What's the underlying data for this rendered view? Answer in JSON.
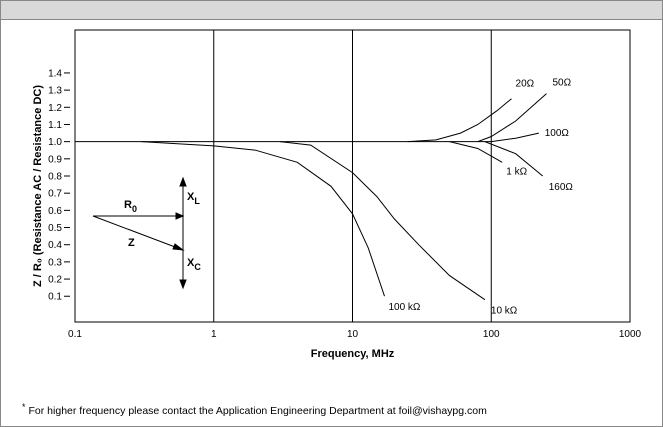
{
  "chart_data": {
    "type": "line",
    "xlabel": "Frequency, MHz",
    "ylabel": "Z / R₀ (Resistance AC / Resistance DC)",
    "xscale": "log",
    "xlim": [
      0.1,
      1000
    ],
    "xticks": [
      0.1,
      1,
      10,
      100,
      1000
    ],
    "ylim": [
      -0.05,
      1.65
    ],
    "yticks": [
      0.1,
      0.2,
      0.3,
      0.4,
      0.5,
      0.6,
      0.7,
      0.8,
      0.9,
      {
        "value": 1,
        "label": "1.0"
      },
      1.1,
      1.2,
      1.3,
      1.4
    ],
    "grid": "x",
    "color": "#000000",
    "series": [
      {
        "x": [
          0.1,
          100
        ],
        "values": [
          1,
          1
        ]
      },
      {
        "name": "20Ω",
        "x": [
          25,
          40,
          60,
          80,
          110,
          140
        ],
        "values": [
          1,
          1.01,
          1.05,
          1.1,
          1.18,
          1.25
        ]
      },
      {
        "name": "50Ω",
        "x": [
          80,
          100,
          150,
          250
        ],
        "values": [
          1,
          1.03,
          1.12,
          1.28
        ]
      },
      {
        "name": "100Ω",
        "x": [
          100,
          150,
          220
        ],
        "values": [
          1,
          1.02,
          1.05
        ]
      },
      {
        "name": "1 kΩ",
        "x": [
          50,
          80,
          120
        ],
        "values": [
          1,
          0.96,
          0.88
        ]
      },
      {
        "name": "160Ω",
        "x": [
          90,
          150,
          235
        ],
        "values": [
          1,
          0.93,
          0.8
        ]
      },
      {
        "name": "100 kΩ",
        "x": [
          0.3,
          1,
          2,
          4,
          7,
          10,
          13,
          17
        ],
        "values": [
          1,
          0.975,
          0.95,
          0.88,
          0.74,
          0.58,
          0.38,
          0.1
        ]
      },
      {
        "name": "10 kΩ",
        "x": [
          3,
          5,
          10,
          15,
          20,
          30,
          50,
          90
        ],
        "values": [
          1,
          0.98,
          0.82,
          0.68,
          0.55,
          0.4,
          0.22,
          0.08
        ]
      }
    ],
    "inset": {
      "labels": [
        [
          "R",
          "0"
        ],
        [
          "Z"
        ],
        [
          "X",
          "L"
        ],
        [
          "X",
          "C"
        ]
      ]
    },
    "footnote_mark": "*",
    "footnote": "For higher frequency please contact the Application Engineering Department at foil@vishaypg.com"
  }
}
